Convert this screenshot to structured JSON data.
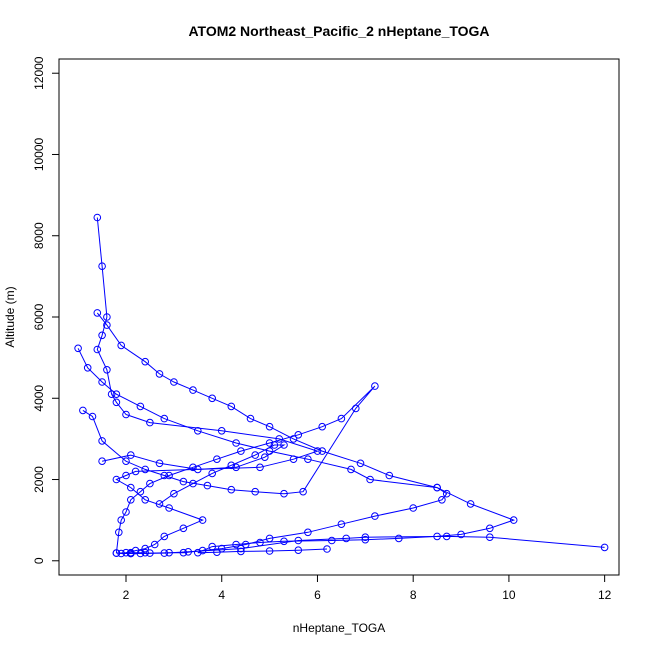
{
  "chart_data": {
    "type": "line",
    "title": "ATOM2 Northeast_Pacific_2 nHeptane_TOGA",
    "xlabel": "nHeptane_TOGA",
    "ylabel": "Altitude (m)",
    "xlim": [
      0.6,
      12.3
    ],
    "ylim": [
      -350,
      12350
    ],
    "xticks": [
      2,
      4,
      6,
      8,
      10,
      12
    ],
    "yticks": [
      0,
      2000,
      4000,
      6000,
      8000,
      10000,
      12000
    ],
    "marker": "open-circle",
    "grid": false,
    "series_color": "#0000ff",
    "series": [
      {
        "x": [
          1.4,
          1.5,
          1.6,
          1.5,
          1.4,
          1.6,
          1.7,
          1.8,
          2.0,
          2.5,
          4.0,
          5.2,
          6.0,
          5.5,
          4.8,
          2.2,
          2.0,
          1.8,
          2.1,
          2.4,
          2.9,
          3.6,
          3.2,
          2.8,
          2.6,
          2.4,
          2.2,
          2.0,
          2.1,
          2.3,
          2.8,
          3.3,
          4.4,
          5.6,
          6.6,
          7.0,
          8.7,
          9.6,
          12.0
        ],
        "y": [
          8450,
          7250,
          6000,
          5550,
          5200,
          4700,
          4100,
          3900,
          3600,
          3400,
          3200,
          3000,
          2700,
          2500,
          2300,
          2200,
          2100,
          2000,
          1800,
          1500,
          1300,
          1000,
          800,
          600,
          400,
          300,
          250,
          200,
          180,
          180,
          190,
          220,
          300,
          500,
          550,
          580,
          600,
          580,
          330
        ]
      },
      {
        "x": [
          1.4,
          1.6,
          1.9,
          2.4,
          2.7,
          3.0,
          3.4,
          3.8,
          4.2,
          4.6,
          5.0,
          5.5,
          6.1,
          6.9,
          7.5,
          8.5,
          9.2,
          10.1,
          9.6,
          9.0,
          8.5,
          7.7,
          7.0,
          6.3,
          5.3,
          4.8,
          4.3,
          3.8,
          3.5,
          3.9,
          4.4,
          5.0,
          5.6,
          6.2
        ],
        "y": [
          6100,
          5800,
          5300,
          4900,
          4600,
          4400,
          4200,
          4000,
          3800,
          3500,
          3300,
          3000,
          2700,
          2400,
          2100,
          1800,
          1400,
          1000,
          800,
          650,
          600,
          550,
          520,
          500,
          480,
          450,
          400,
          350,
          200,
          210,
          230,
          240,
          260,
          290
        ]
      },
      {
        "x": [
          1.0,
          1.2,
          1.5,
          1.8,
          2.3,
          2.8,
          3.5,
          4.3,
          5.0,
          5.8,
          6.7,
          7.1,
          8.5,
          8.7,
          8.6,
          8.0,
          7.2,
          6.5,
          5.8,
          5.0,
          4.5,
          4.0,
          3.6,
          3.2,
          2.9,
          2.5,
          2.1,
          1.9,
          1.8,
          2.1,
          2.4
        ],
        "y": [
          5230,
          4750,
          4400,
          4100,
          3800,
          3500,
          3200,
          2900,
          2700,
          2500,
          2250,
          2000,
          1800,
          1650,
          1500,
          1300,
          1100,
          900,
          700,
          550,
          400,
          300,
          250,
          200,
          200,
          190,
          180,
          180,
          190,
          200,
          200
        ]
      },
      {
        "x": [
          1.1,
          1.3,
          1.5,
          2.0,
          2.4,
          2.8,
          3.2,
          3.7,
          4.2,
          4.7,
          5.3,
          5.7,
          6.8,
          7.2,
          6.5,
          6.1,
          5.6,
          5.0,
          4.4,
          3.9,
          3.4,
          2.9,
          2.5,
          2.3,
          2.1,
          2.0,
          1.9,
          1.85,
          1.8
        ],
        "y": [
          3700,
          3550,
          2950,
          2450,
          2250,
          2100,
          1950,
          1850,
          1750,
          1700,
          1650,
          1700,
          3750,
          4300,
          3500,
          3300,
          3100,
          2900,
          2700,
          2500,
          2300,
          2100,
          1900,
          1700,
          1500,
          1200,
          1000,
          700,
          190
        ]
      },
      {
        "x": [
          1.5,
          2.1,
          2.7,
          3.5,
          4.3,
          4.9,
          5.3,
          5.1,
          4.7,
          4.2,
          3.8,
          3.4,
          3.0,
          2.7
        ],
        "y": [
          2450,
          2600,
          2400,
          2250,
          2300,
          2550,
          2850,
          2850,
          2600,
          2350,
          2150,
          1900,
          1650,
          1400
        ]
      }
    ]
  }
}
